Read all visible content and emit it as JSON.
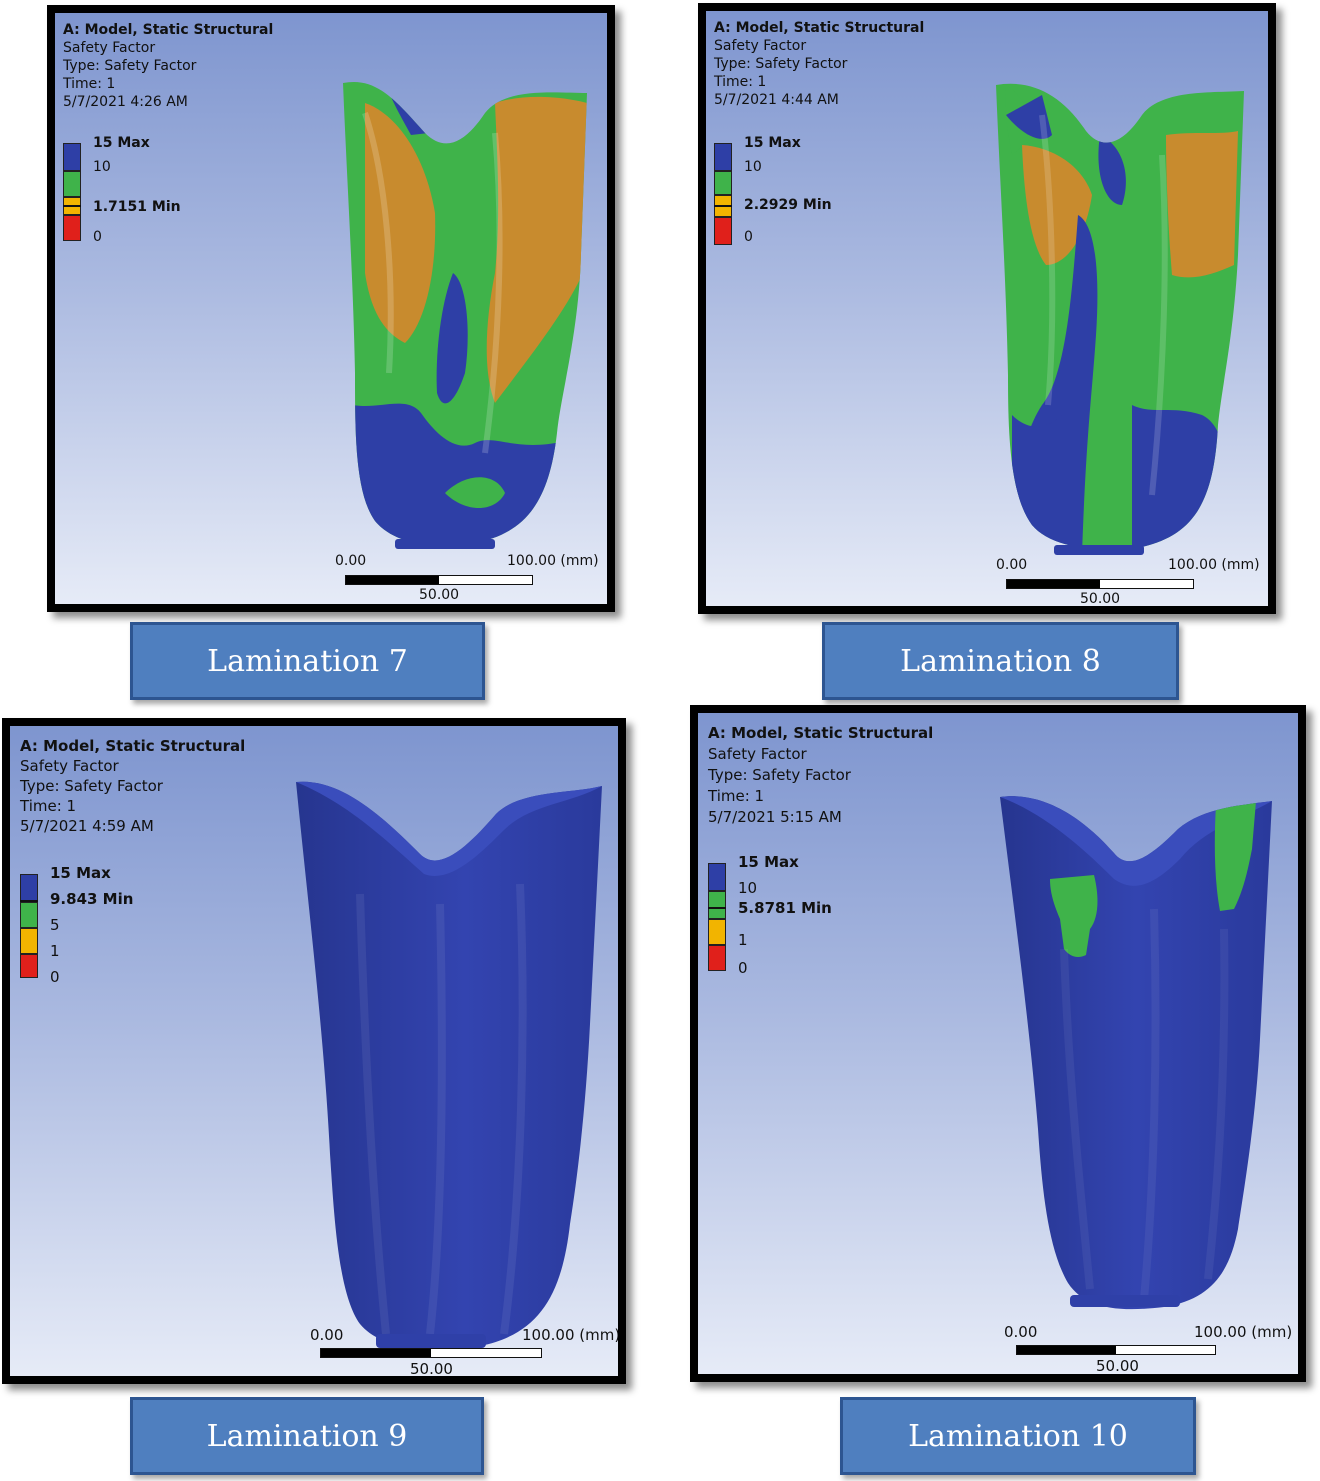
{
  "colors": {
    "blue": "#2e3fa6",
    "green": "#3fb34a",
    "orange": "#c88b2e",
    "yellow": "#f2b400",
    "red": "#e0201b",
    "caption_bg": "#4f7fbf"
  },
  "panels": [
    {
      "title": "A: Model, Static Structural",
      "result": "Safety Factor",
      "type": "Type: Safety Factor",
      "time": "Time: 1",
      "date": "5/7/2021 4:26 AM",
      "legend": [
        "15 Max",
        "10",
        "1.7151 Min",
        "0"
      ],
      "scale": {
        "start": "0.00",
        "end": "100.00 (mm)",
        "mid": "50.00"
      },
      "caption": "Lamination 7"
    },
    {
      "title": "A: Model, Static Structural",
      "result": "Safety Factor",
      "type": "Type: Safety Factor",
      "time": "Time: 1",
      "date": "5/7/2021 4:44 AM",
      "legend": [
        "15 Max",
        "10",
        "2.2929 Min",
        "0"
      ],
      "scale": {
        "start": "0.00",
        "end": "100.00 (mm)",
        "mid": "50.00"
      },
      "caption": "Lamination 8"
    },
    {
      "title": "A: Model, Static Structural",
      "result": "Safety Factor",
      "type": "Type: Safety Factor",
      "time": "Time: 1",
      "date": "5/7/2021 4:59 AM",
      "legend": [
        "15 Max",
        "9.843 Min",
        "5",
        "1",
        "0"
      ],
      "scale": {
        "start": "0.00",
        "end": "100.00 (mm)",
        "mid": "50.00"
      },
      "caption": "Lamination 9"
    },
    {
      "title": "A: Model, Static Structural",
      "result": "Safety Factor",
      "type": "Type: Safety Factor",
      "time": "Time: 1",
      "date": "5/7/2021 5:15 AM",
      "legend": [
        "15 Max",
        "10",
        "5.8781 Min",
        "1",
        "0"
      ],
      "scale": {
        "start": "0.00",
        "end": "100.00 (mm)",
        "mid": "50.00"
      },
      "caption": "Lamination 10"
    }
  ]
}
